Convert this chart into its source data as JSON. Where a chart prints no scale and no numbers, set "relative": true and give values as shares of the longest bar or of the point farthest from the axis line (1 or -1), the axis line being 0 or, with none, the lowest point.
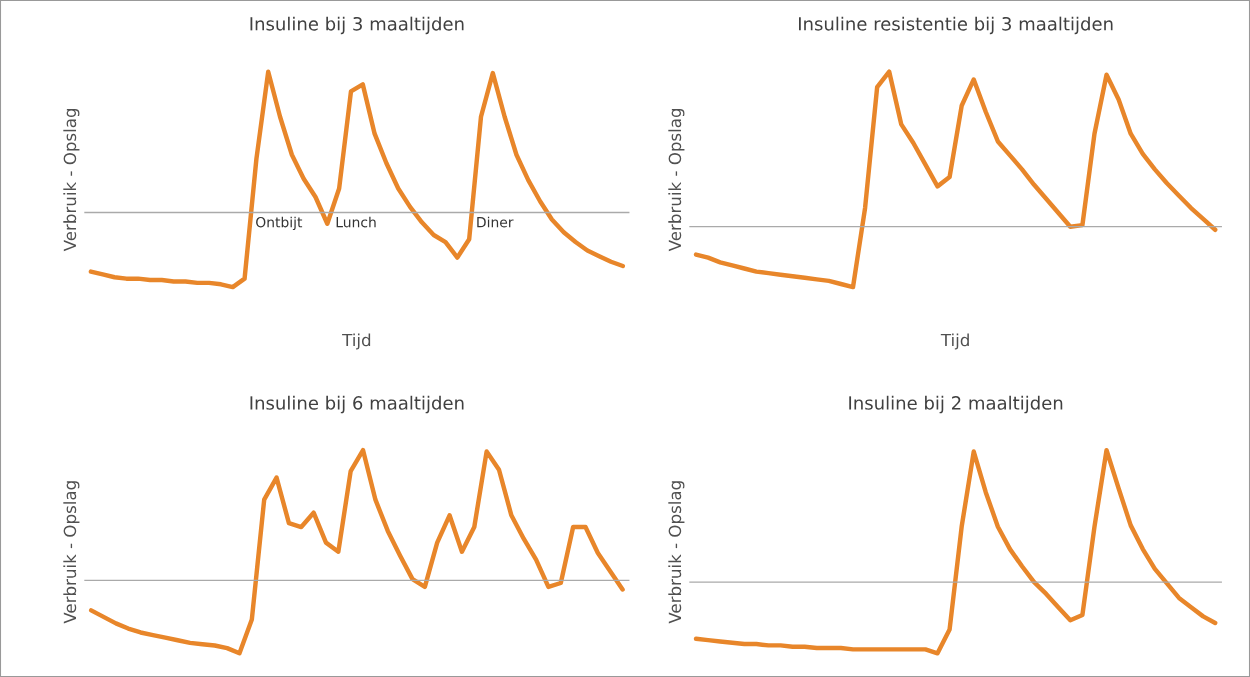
{
  "chart_data": [
    {
      "type": "line",
      "title": "Insuline bij 3 maaltijden",
      "xlabel": "Tijd",
      "ylabel": "Verbruik - Opslag",
      "relative": true,
      "categories": [
        null,
        null,
        null,
        null,
        null,
        null,
        null,
        null,
        null,
        null,
        null,
        null,
        null,
        null,
        null,
        null,
        null,
        null,
        null,
        null,
        null,
        null,
        null,
        null,
        null,
        null,
        null,
        null,
        null,
        null,
        null,
        null,
        null,
        null,
        null,
        null,
        null,
        null,
        null,
        null,
        null,
        null,
        null,
        null,
        null,
        null
      ],
      "series": [
        {
          "color": "#e8862a",
          "values": [
            -0.42,
            -0.44,
            -0.46,
            -0.47,
            -0.47,
            -0.48,
            -0.48,
            -0.49,
            -0.49,
            -0.5,
            -0.5,
            -0.51,
            -0.53,
            -0.47,
            0.38,
            1.0,
            0.68,
            0.41,
            0.24,
            0.11,
            -0.08,
            0.17,
            0.86,
            0.91,
            0.56,
            0.35,
            0.17,
            0.04,
            -0.07,
            -0.16,
            -0.21,
            -0.32,
            -0.19,
            0.68,
            0.99,
            0.68,
            0.41,
            0.23,
            0.08,
            -0.05,
            -0.14,
            -0.21,
            -0.27,
            -0.31,
            -0.35,
            -0.38
          ]
        }
      ],
      "annotations": [
        "Ontbijt",
        "Lunch",
        "Diner"
      ]
    },
    {
      "type": "line",
      "title": "Insuline resistentie bij 3 maaltijden",
      "xlabel": "Tijd",
      "ylabel": "Verbruik - Opslag",
      "relative": true,
      "categories": [
        null,
        null,
        null,
        null,
        null,
        null,
        null,
        null,
        null,
        null,
        null,
        null,
        null,
        null,
        null,
        null,
        null,
        null,
        null,
        null,
        null,
        null,
        null,
        null,
        null,
        null,
        null,
        null,
        null,
        null,
        null,
        null,
        null,
        null,
        null,
        null,
        null,
        null,
        null,
        null,
        null,
        null,
        null,
        null
      ],
      "series": [
        {
          "color": "#e8862a",
          "values": [
            -0.18,
            -0.2,
            -0.23,
            -0.25,
            -0.27,
            -0.29,
            -0.3,
            -0.31,
            -0.32,
            -0.33,
            -0.34,
            -0.35,
            -0.37,
            -0.39,
            0.12,
            0.9,
            1.0,
            0.66,
            0.54,
            0.4,
            0.26,
            0.32,
            0.78,
            0.95,
            0.74,
            0.55,
            0.46,
            0.37,
            0.27,
            0.18,
            0.09,
            0.0,
            0.01,
            0.6,
            0.98,
            0.82,
            0.6,
            0.47,
            0.37,
            0.28,
            0.2,
            0.12,
            0.05,
            -0.02
          ]
        }
      ]
    },
    {
      "type": "line",
      "title": "Insuline bij 6 maaltijden",
      "ylabel": "Verbruik - Opslag",
      "relative": true,
      "categories": [
        null,
        null,
        null,
        null,
        null,
        null,
        null,
        null,
        null,
        null,
        null,
        null,
        null,
        null,
        null,
        null,
        null,
        null,
        null,
        null,
        null,
        null,
        null,
        null,
        null,
        null,
        null,
        null,
        null,
        null,
        null,
        null,
        null,
        null,
        null,
        null,
        null,
        null,
        null,
        null,
        null,
        null,
        null,
        null
      ],
      "series": [
        {
          "color": "#e8862a",
          "values": [
            -0.23,
            -0.28,
            -0.33,
            -0.37,
            -0.4,
            -0.42,
            -0.44,
            -0.46,
            -0.48,
            -0.49,
            -0.5,
            -0.52,
            -0.56,
            -0.3,
            0.62,
            0.79,
            0.44,
            0.41,
            0.52,
            0.29,
            0.22,
            0.84,
            1.0,
            0.62,
            0.38,
            0.19,
            0.01,
            -0.05,
            0.29,
            0.5,
            0.22,
            0.41,
            0.99,
            0.85,
            0.5,
            0.32,
            0.16,
            -0.05,
            -0.02,
            0.41,
            0.41,
            0.21,
            0.07,
            -0.07
          ]
        }
      ]
    },
    {
      "type": "line",
      "title": "Insuline bij 2 maaltijden",
      "ylabel": "Verbruik - Opslag",
      "relative": true,
      "categories": [
        null,
        null,
        null,
        null,
        null,
        null,
        null,
        null,
        null,
        null,
        null,
        null,
        null,
        null,
        null,
        null,
        null,
        null,
        null,
        null,
        null,
        null,
        null,
        null,
        null,
        null,
        null,
        null,
        null,
        null,
        null,
        null,
        null,
        null,
        null,
        null,
        null,
        null,
        null,
        null,
        null,
        null,
        null,
        null
      ],
      "series": [
        {
          "color": "#e8862a",
          "values": [
            -0.43,
            -0.44,
            -0.45,
            -0.46,
            -0.47,
            -0.47,
            -0.48,
            -0.48,
            -0.49,
            -0.49,
            -0.5,
            -0.5,
            -0.5,
            -0.51,
            -0.51,
            -0.51,
            -0.51,
            -0.51,
            -0.51,
            -0.51,
            -0.54,
            -0.36,
            0.42,
            0.99,
            0.68,
            0.42,
            0.25,
            0.12,
            0.0,
            -0.09,
            -0.19,
            -0.29,
            -0.25,
            0.42,
            1.0,
            0.71,
            0.43,
            0.25,
            0.1,
            -0.01,
            -0.12,
            -0.19,
            -0.26,
            -0.31
          ]
        }
      ]
    }
  ]
}
